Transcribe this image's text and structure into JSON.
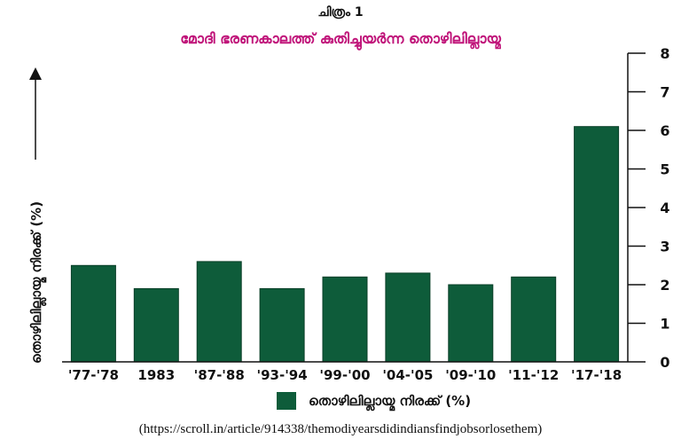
{
  "figure_label": "ചിത്രം 1",
  "source": "(https://scroll.in/article/914338/themodiyearsdidindiansfindjobsorlosethem)",
  "colors": {
    "bar": "#0e5c3a",
    "title": "#c0157a",
    "axis": "#111111"
  },
  "chart_data": {
    "type": "bar",
    "title": "മോദി ഭരണകാലത്ത് കുതിച്ചുയർന്ന തൊഴിലില്ലായ്മ",
    "xlabel": "",
    "ylabel": "തൊഴിലില്ലായ്മ നിരക്ക് (%)",
    "categories": [
      "'77-'78",
      "1983",
      "'87-'88",
      "'93-'94",
      "'99-'00",
      "'04-'05",
      "'09-'10",
      "'11-'12",
      "'17-'18"
    ],
    "series": [
      {
        "name": "തൊഴിലില്ലായ്മ നിരക്ക് (%)",
        "values": [
          2.5,
          1.9,
          2.6,
          1.9,
          2.2,
          2.3,
          2.0,
          2.2,
          6.1
        ]
      }
    ],
    "ylim": [
      0,
      8
    ],
    "yticks": [
      0,
      1,
      2,
      3,
      4,
      5,
      6,
      7,
      8
    ],
    "y_axis_side": "right",
    "grid": false,
    "legend_position": "bottom"
  }
}
